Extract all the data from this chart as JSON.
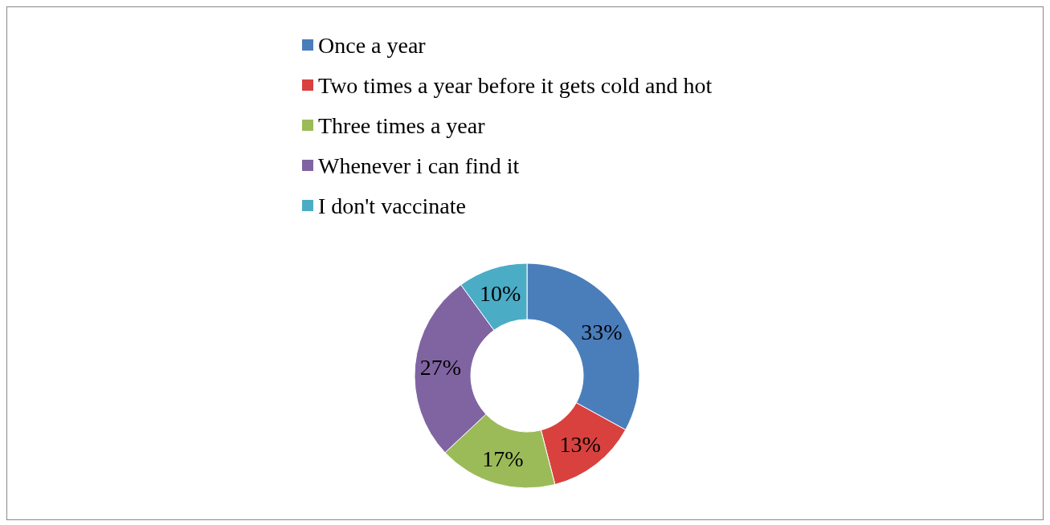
{
  "chart_data": {
    "type": "donut",
    "categories": [
      "Once a year",
      "Two times a year before it gets cold and hot",
      "Three times a year",
      "Whenever i can find it",
      "I don't vaccinate"
    ],
    "values": [
      33,
      13,
      17,
      27,
      10
    ],
    "colors": [
      "#4a7ebb",
      "#d9413e",
      "#9bbb59",
      "#8064a2",
      "#4bacc6"
    ],
    "value_labels": [
      "33%",
      "13%",
      "17%",
      "27%",
      "10%"
    ],
    "legend": "top"
  }
}
